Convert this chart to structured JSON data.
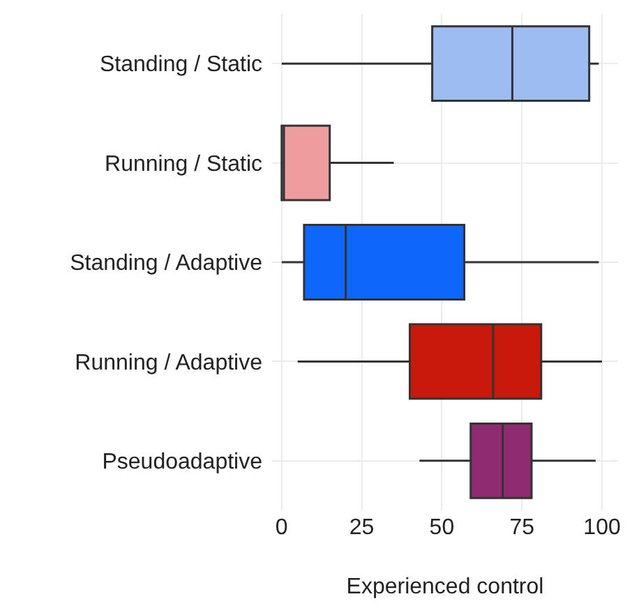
{
  "chart_data": {
    "type": "box",
    "orientation": "horizontal",
    "xlabel": "Experienced control",
    "categories": [
      "Standing / Static",
      "Running / Static",
      "Standing / Adaptive",
      "Running / Adaptive",
      "Pseudoadaptive"
    ],
    "colors": [
      "#9dbdf2",
      "#ee9d9f",
      "#0e66fb",
      "#c9180c",
      "#8e2b71"
    ],
    "boxes": [
      {
        "low": 0,
        "q1": 47,
        "median": 72,
        "q3": 96,
        "high": 99
      },
      {
        "low": 0,
        "q1": 0,
        "median": 0.7,
        "q3": 15,
        "high": 35
      },
      {
        "low": 0,
        "q1": 7,
        "median": 20,
        "q3": 57,
        "high": 99
      },
      {
        "low": 5,
        "q1": 40,
        "median": 66,
        "q3": 81,
        "high": 100
      },
      {
        "low": 43,
        "q1": 59,
        "median": 69,
        "q3": 78,
        "high": 98
      }
    ],
    "xlim": [
      -3,
      105
    ],
    "xticks": [
      0,
      25,
      50,
      75,
      100
    ],
    "grid": true,
    "legend": false
  }
}
